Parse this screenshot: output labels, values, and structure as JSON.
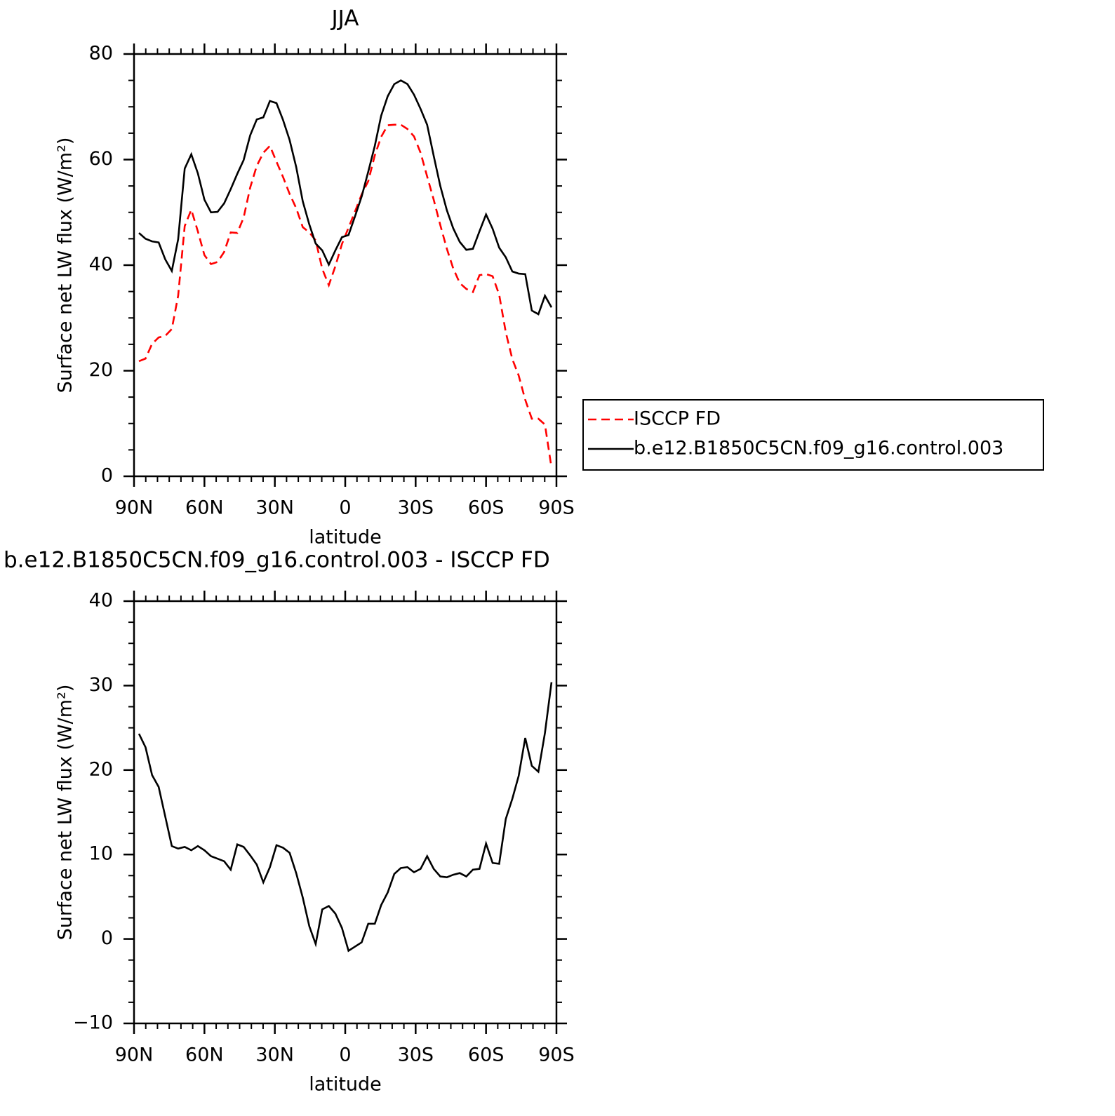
{
  "chart_data": [
    {
      "type": "line",
      "title": "JJA",
      "x": [
        87.9,
        85.1,
        82.3,
        79.5,
        76.7,
        73.9,
        71.2,
        68.4,
        65.6,
        62.8,
        60.0,
        57.2,
        54.4,
        51.6,
        48.8,
        46.0,
        43.3,
        40.5,
        37.7,
        34.9,
        32.1,
        29.3,
        26.5,
        23.7,
        20.9,
        18.1,
        15.3,
        12.6,
        9.8,
        7.0,
        4.2,
        1.4,
        -1.4,
        -4.2,
        -7.0,
        -9.8,
        -12.6,
        -15.3,
        -18.1,
        -20.9,
        -23.7,
        -26.5,
        -29.3,
        -32.1,
        -34.9,
        -37.7,
        -40.5,
        -43.3,
        -46.0,
        -48.8,
        -51.6,
        -54.4,
        -57.2,
        -60.0,
        -62.8,
        -65.6,
        -68.4,
        -71.2,
        -73.9,
        -76.7,
        -79.5,
        -82.3,
        -85.1,
        -87.9
      ],
      "xlim": [
        90,
        -90
      ],
      "xticks": [
        {
          "value": 90,
          "label": "90N"
        },
        {
          "value": 60,
          "label": "60N"
        },
        {
          "value": 30,
          "label": "30N"
        },
        0,
        {
          "value": -30,
          "label": "30S"
        },
        {
          "value": -60,
          "label": "60S"
        },
        {
          "value": -90,
          "label": "90S"
        }
      ],
      "x_minor_step": 5,
      "xlabel": "latitude",
      "ylim": [
        0,
        80
      ],
      "yticks": [
        0,
        20,
        40,
        60,
        80
      ],
      "y_minor_step": 5,
      "ylabel": "Surface net LW flux (W/m²)",
      "legend": "outside right",
      "series": [
        {
          "name": "ISCCP FD",
          "color": "#ff0000",
          "linestyle": "dashed",
          "values": [
            21.8,
            22.3,
            25.1,
            26.3,
            26.6,
            27.9,
            34.2,
            47.4,
            50.5,
            46.4,
            41.9,
            40.2,
            40.6,
            42.5,
            46.2,
            46.1,
            49.0,
            54.7,
            58.8,
            61.3,
            62.6,
            59.6,
            56.7,
            53.5,
            50.8,
            47.2,
            46.2,
            44.7,
            39.3,
            36.2,
            39.8,
            44.0,
            47.1,
            50.2,
            53.4,
            55.9,
            60.8,
            64.3,
            66.5,
            66.6,
            66.6,
            65.8,
            64.4,
            61.3,
            56.8,
            52.4,
            47.6,
            43.1,
            39.4,
            36.6,
            35.5,
            34.9,
            38.1,
            38.3,
            37.9,
            34.4,
            27.3,
            22.2,
            19.1,
            14.5,
            10.9,
            10.9,
            9.8,
            1.6
          ]
        },
        {
          "name": "b.e12.B1850C5CN.f09_g16.control.003",
          "color": "#000000",
          "linestyle": "solid",
          "values": [
            46.1,
            45.0,
            44.5,
            44.3,
            41.1,
            38.9,
            44.9,
            58.3,
            61.0,
            57.4,
            52.4,
            50.0,
            50.1,
            51.7,
            54.4,
            57.3,
            59.9,
            64.6,
            67.6,
            68.0,
            71.1,
            70.7,
            67.5,
            63.7,
            58.6,
            52.1,
            47.7,
            44.1,
            42.8,
            40.1,
            42.8,
            45.3,
            45.7,
            49.3,
            53.0,
            57.7,
            62.6,
            68.3,
            72.0,
            74.3,
            75.0,
            74.3,
            72.3,
            69.6,
            66.6,
            60.7,
            55.0,
            50.4,
            47.0,
            44.4,
            42.9,
            43.1,
            46.4,
            49.6,
            46.9,
            43.3,
            41.5,
            38.8,
            38.4,
            38.3,
            31.4,
            30.7,
            34.2,
            32.0
          ]
        }
      ]
    },
    {
      "type": "line",
      "title": "b.e12.B1850C5CN.f09_g16.control.003 - ISCCP FD",
      "x": [
        87.9,
        85.1,
        82.3,
        79.5,
        76.7,
        73.9,
        71.2,
        68.4,
        65.6,
        62.8,
        60.0,
        57.2,
        54.4,
        51.6,
        48.8,
        46.0,
        43.3,
        40.5,
        37.7,
        34.9,
        32.1,
        29.3,
        26.5,
        23.7,
        20.9,
        18.1,
        15.3,
        12.6,
        9.8,
        7.0,
        4.2,
        1.4,
        -1.4,
        -4.2,
        -7.0,
        -9.8,
        -12.6,
        -15.3,
        -18.1,
        -20.9,
        -23.7,
        -26.5,
        -29.3,
        -32.1,
        -34.9,
        -37.7,
        -40.5,
        -43.3,
        -46.0,
        -48.8,
        -51.6,
        -54.4,
        -57.2,
        -60.0,
        -62.8,
        -65.6,
        -68.4,
        -71.2,
        -73.9,
        -76.7,
        -79.5,
        -82.3,
        -85.1,
        -87.9
      ],
      "xlim": [
        90,
        -90
      ],
      "xticks": [
        {
          "value": 90,
          "label": "90N"
        },
        {
          "value": 60,
          "label": "60N"
        },
        {
          "value": 30,
          "label": "30N"
        },
        0,
        {
          "value": -30,
          "label": "30S"
        },
        {
          "value": -60,
          "label": "60S"
        },
        {
          "value": -90,
          "label": "90S"
        }
      ],
      "x_minor_step": 5,
      "xlabel": "latitude",
      "ylim": [
        -10,
        40
      ],
      "yticks": [
        {
          "value": -10,
          "label": "−10"
        },
        0,
        10,
        20,
        30,
        40
      ],
      "y_minor_step": 2.5,
      "ylabel": "Surface net LW flux (W/m²)",
      "series": [
        {
          "color": "#000000",
          "linestyle": "solid",
          "values": [
            24.3,
            22.7,
            19.4,
            18.0,
            14.5,
            11.0,
            10.7,
            10.9,
            10.5,
            11.0,
            10.5,
            9.8,
            9.5,
            9.2,
            8.2,
            11.2,
            10.9,
            9.9,
            8.8,
            6.7,
            8.5,
            11.1,
            10.8,
            10.2,
            7.8,
            4.9,
            1.5,
            -0.6,
            3.5,
            3.9,
            3.0,
            1.3,
            -1.4,
            -0.9,
            -0.4,
            1.8,
            1.8,
            4.0,
            5.5,
            7.7,
            8.4,
            8.5,
            7.9,
            8.3,
            9.8,
            8.3,
            7.4,
            7.3,
            7.6,
            7.8,
            7.4,
            8.2,
            8.3,
            11.3,
            9.0,
            8.9,
            14.2,
            16.6,
            19.3,
            23.8,
            20.5,
            19.8,
            24.4,
            30.4
          ]
        }
      ]
    }
  ]
}
